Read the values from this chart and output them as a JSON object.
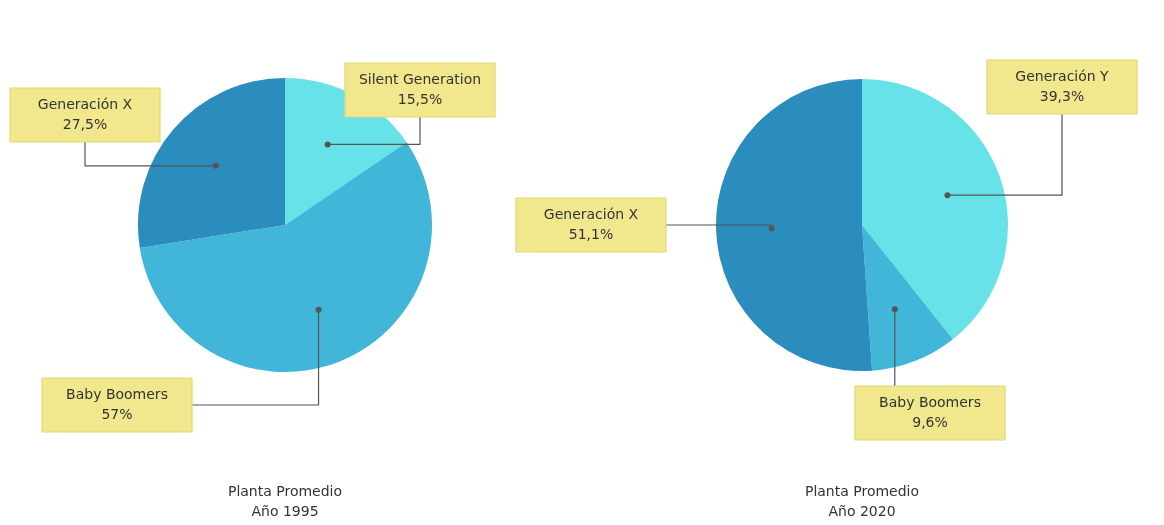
{
  "chart_data": [
    {
      "type": "pie",
      "title": "Planta Promedio",
      "subtitle": "Año 1995",
      "categories": [
        "Silent Generation",
        "Baby Boomers",
        "Generación X"
      ],
      "values": [
        15.5,
        57,
        27.5
      ],
      "value_labels": [
        "15,5%",
        "57%",
        "27,5%"
      ],
      "colors": [
        "#67e2e8",
        "#41b6d8",
        "#2b8cbe"
      ],
      "legend": false
    },
    {
      "type": "pie",
      "title": "Planta Promedio",
      "subtitle": "Año 2020",
      "categories": [
        "Generación Y",
        "Baby Boomers",
        "Generación X"
      ],
      "values": [
        39.3,
        9.6,
        51.1
      ],
      "value_labels": [
        "39,3%",
        "9,6%",
        "51,1%"
      ],
      "colors": [
        "#67e2e8",
        "#41b6d8",
        "#2b8cbe"
      ],
      "legend": false
    }
  ]
}
